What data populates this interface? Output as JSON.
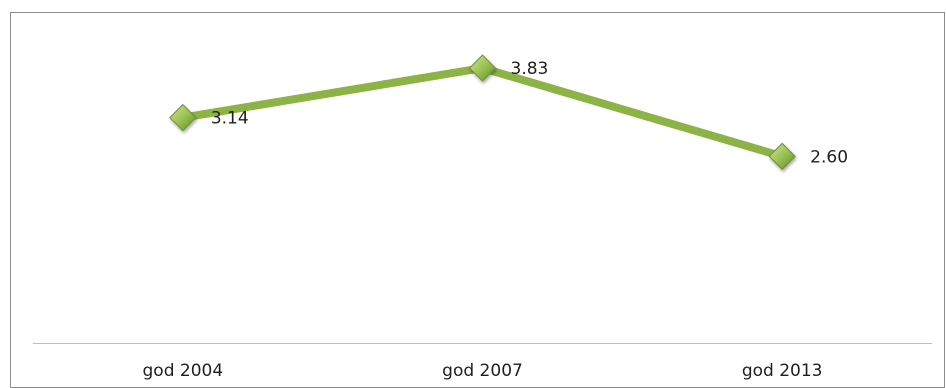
{
  "chart_data": {
    "type": "line",
    "categories": [
      "god 2004",
      "god 2007",
      "god 2013"
    ],
    "series": [
      {
        "values": [
          3.14,
          3.83,
          2.6
        ],
        "labels": [
          "3.14",
          "3.83",
          "2.60"
        ]
      }
    ],
    "title": "",
    "xlabel": "",
    "ylabel": "",
    "ylim": [
      0,
      4.5
    ],
    "grid": false,
    "legend": "none",
    "marker": "diamond",
    "colors": {
      "line": "#8db347",
      "marker_fill": "#9bc254",
      "marker_stroke": "#6f8f33",
      "frame": "#8c8c8c",
      "axis": "#bfbfbf"
    }
  }
}
